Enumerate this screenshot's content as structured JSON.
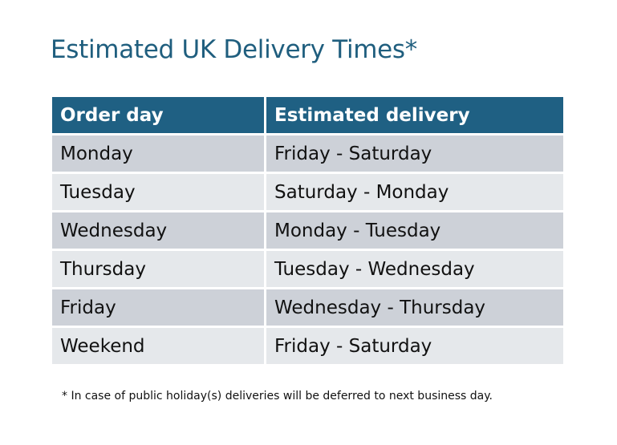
{
  "title": "Estimated UK Delivery Times*",
  "table": {
    "headers": [
      "Order day",
      "Estimated delivery"
    ],
    "rows": [
      [
        "Monday",
        "Friday - Saturday"
      ],
      [
        "Tuesday",
        "Saturday - Monday"
      ],
      [
        "Wednesday",
        "Monday - Tuesday"
      ],
      [
        "Thursday",
        "Tuesday - Wednesday"
      ],
      [
        "Friday",
        "Wednesday - Thursday"
      ],
      [
        "Weekend",
        "Friday - Saturday"
      ]
    ]
  },
  "footnote": "* In case of public holiday(s) deliveries will be deferred to next business day.",
  "colors": {
    "title": "#1f5e7e",
    "header_bg": "#1f6083",
    "row_odd": "#cdd1d8",
    "row_even": "#e5e8eb"
  }
}
